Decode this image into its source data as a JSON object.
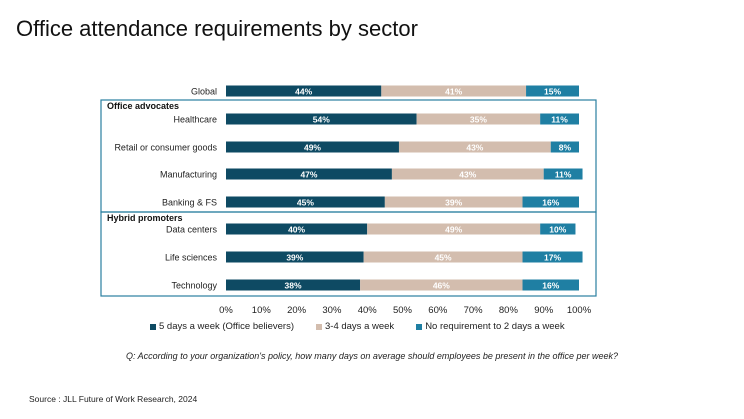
{
  "title": "Office attendance requirements by sector",
  "chart_data": {
    "type": "bar",
    "orientation": "horizontal",
    "stacked": true,
    "categories": [
      "Global",
      "Healthcare",
      "Retail or consumer goods",
      "Manufacturing",
      "Banking & FS",
      "Data centers",
      "Life sciences",
      "Technology"
    ],
    "series": [
      {
        "name": "5 days a week (Office believers)",
        "color": "#0e4a63",
        "values": [
          44,
          54,
          49,
          47,
          45,
          40,
          39,
          38
        ]
      },
      {
        "name": "3-4 days a week",
        "color": "#d3bdae",
        "values": [
          41,
          35,
          43,
          43,
          39,
          49,
          45,
          46
        ]
      },
      {
        "name": "No requirement to 2 days a week",
        "color": "#1f7fa3",
        "values": [
          15,
          11,
          8,
          11,
          16,
          10,
          17,
          16
        ]
      }
    ],
    "groups": [
      {
        "label": "Office advocates",
        "categories": [
          "Healthcare",
          "Retail or consumer goods",
          "Manufacturing",
          "Banking & FS"
        ]
      },
      {
        "label": "Hybrid promoters",
        "categories": [
          "Data centers",
          "Life sciences",
          "Technology"
        ]
      }
    ],
    "xticks": [
      "0%",
      "10%",
      "20%",
      "30%",
      "40%",
      "50%",
      "60%",
      "70%",
      "80%",
      "90%",
      "100%"
    ],
    "xlim": [
      0,
      100
    ],
    "value_suffix": "%",
    "legend": "bottom"
  },
  "question": "Q: According to your organization's policy, how many days on average should employees be present in the office per week?",
  "source": "Source : JLL Future of Work Research, 2024"
}
